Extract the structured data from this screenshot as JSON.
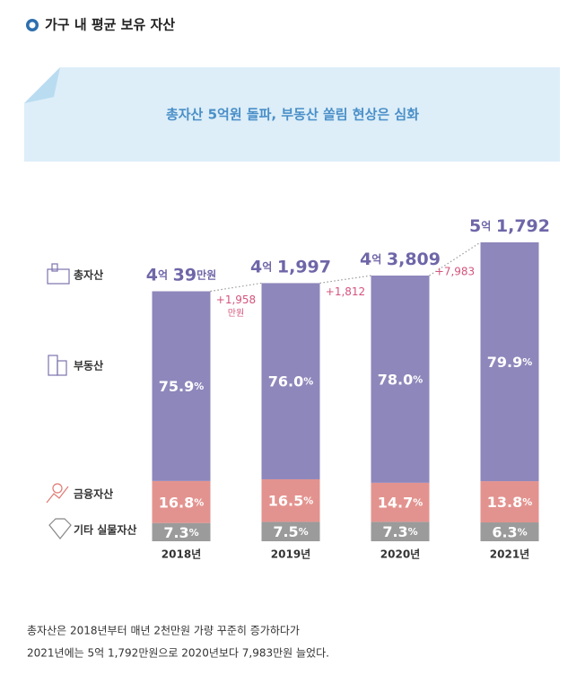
{
  "header": {
    "title": "가구 내 평균 보유 자산"
  },
  "chart_data": {
    "type": "stacked_bar",
    "title": "총자산 5억원 돌파, 부동산 쏠림 현상은 심화",
    "categories": [
      "2018년",
      "2019년",
      "2020년",
      "2021년"
    ],
    "totals": {
      "name": "총자산",
      "values": [
        40039,
        41997,
        43809,
        51792
      ],
      "value_labels": [
        "4억 39만원",
        "4억 1,997",
        "4억 3,809",
        "5억 1,792"
      ]
    },
    "changes": {
      "values": [
        1958,
        1812,
        7983
      ],
      "value_labels": [
        "+1,958 만원",
        "+1,812",
        "+7,983"
      ]
    },
    "series": [
      {
        "name": "기타 실물자산",
        "color": "#9b9b9b",
        "values": [
          7.3,
          7.5,
          7.3,
          6.3
        ],
        "value_labels": [
          "7.3%",
          "7.5%",
          "7.3%",
          "6.3%"
        ]
      },
      {
        "name": "금융자산",
        "color": "#e3938f",
        "values": [
          16.8,
          16.5,
          14.7,
          13.8
        ],
        "value_labels": [
          "16.8%",
          "16.5%",
          "14.7%",
          "13.8%"
        ]
      },
      {
        "name": "부동산",
        "color": "#8e87bb",
        "values": [
          75.9,
          76.0,
          78.0,
          79.9
        ],
        "value_labels": [
          "75.9%",
          "76.0%",
          "78.0%",
          "79.9%"
        ]
      }
    ],
    "ylim": [
      -20000,
      52000
    ]
  },
  "footer": {
    "lines": [
      "총자산은 2018년부터 매년 2천만원 가량 꾸준히 증가하다가",
      "2021년에는 5억 1,792만원으로 2020년보다 7,983만원 늘었다."
    ]
  }
}
